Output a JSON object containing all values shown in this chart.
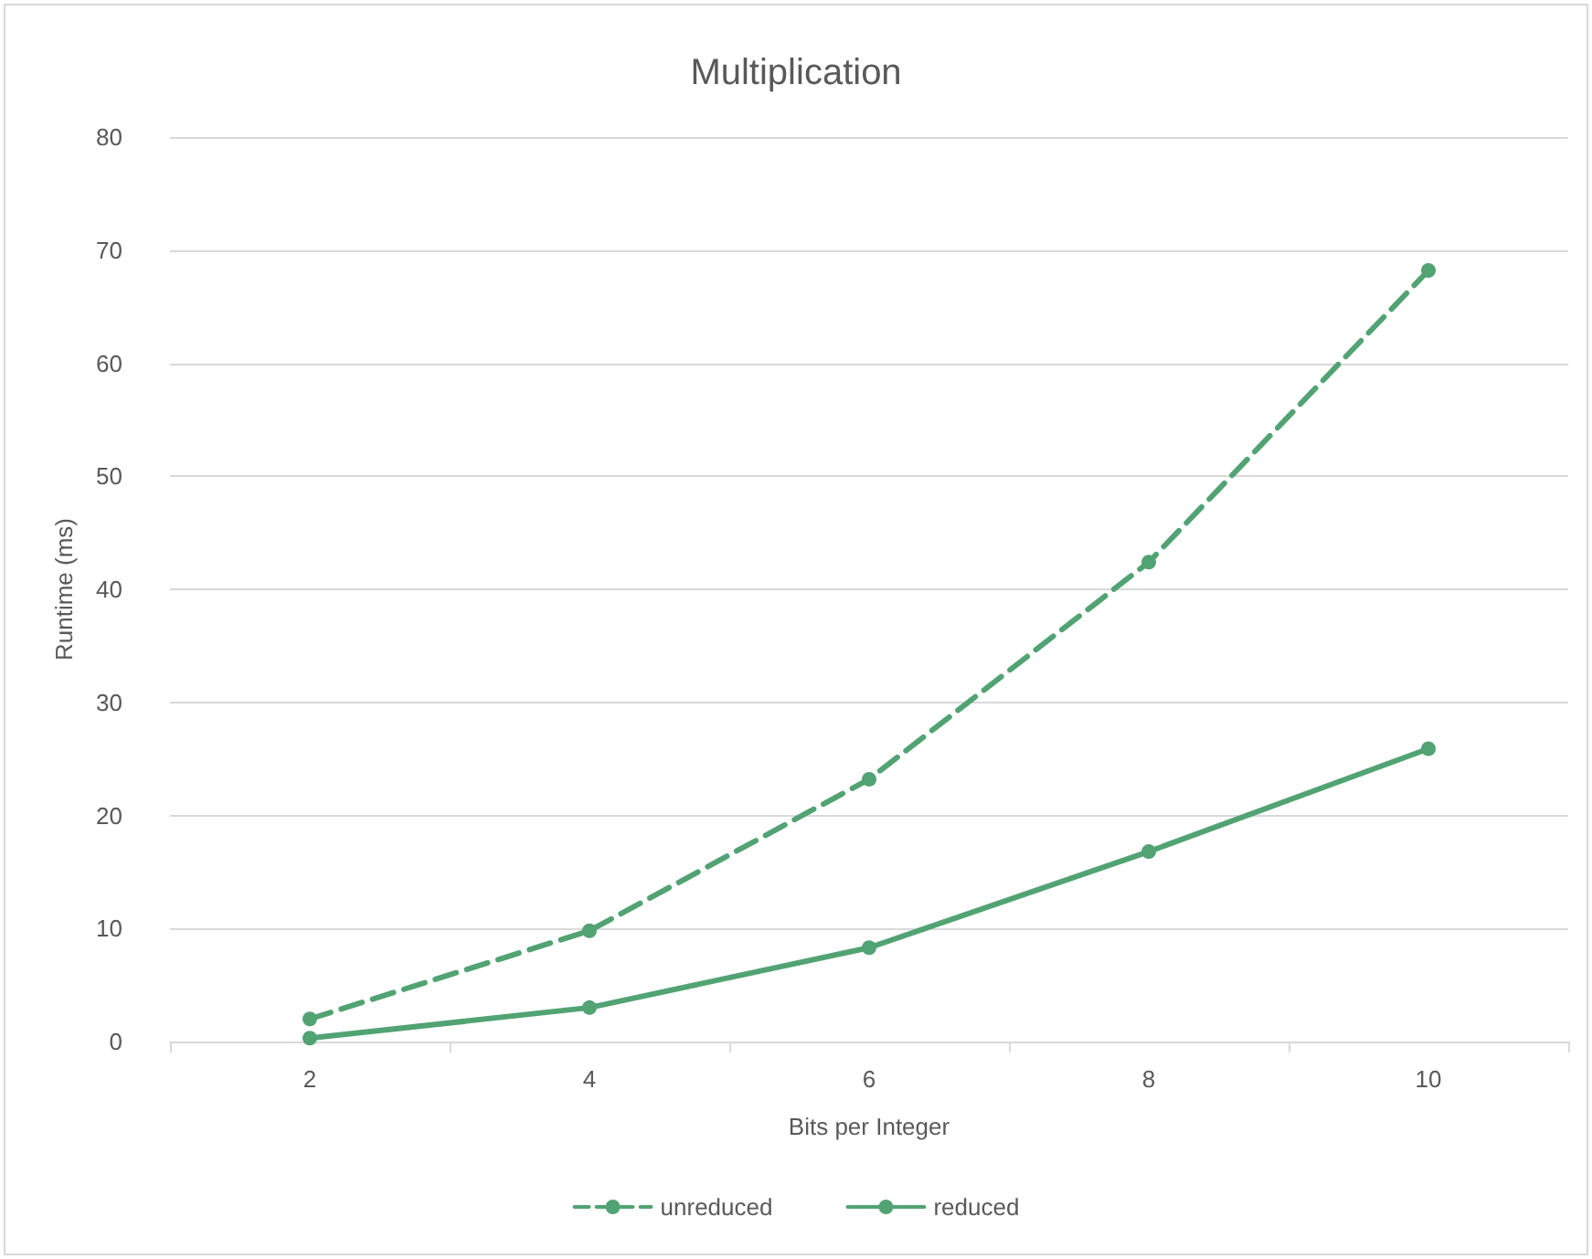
{
  "chart_data": {
    "type": "line",
    "title": "Multiplication",
    "xlabel": "Bits per Integer",
    "ylabel": "Runtime (ms)",
    "categories": [
      "2",
      "4",
      "6",
      "8",
      "10"
    ],
    "series": [
      {
        "name": "unreduced",
        "color": "#52a373",
        "line_style": "dashed",
        "values": [
          2,
          9.8,
          23.2,
          42.4,
          68.2
        ]
      },
      {
        "name": "reduced",
        "color": "#52a373",
        "line_style": "solid",
        "values": [
          0.3,
          3,
          8.3,
          16.8,
          25.9
        ]
      }
    ],
    "ylim": [
      0,
      80
    ],
    "yticks": [
      0,
      10,
      20,
      30,
      40,
      50,
      60,
      70,
      80
    ],
    "grid": "y",
    "legend": "bottom",
    "marker": "circle"
  }
}
